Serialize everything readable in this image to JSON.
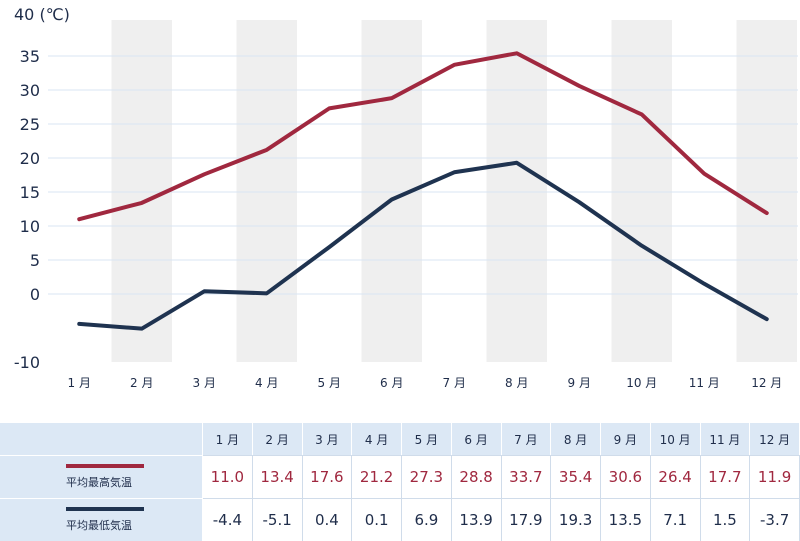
{
  "chart_data": {
    "type": "line",
    "categories": [
      "1 月",
      "2 月",
      "3 月",
      "4 月",
      "5 月",
      "6 月",
      "7 月",
      "8 月",
      "9 月",
      "10 月",
      "11 月",
      "12 月"
    ],
    "ylabel": "40 (℃)",
    "ylim": [
      -10,
      40
    ],
    "yticks": [
      "-10",
      "0",
      "5",
      "10",
      "15",
      "20",
      "25",
      "30",
      "35"
    ],
    "ytick_values": [
      -10,
      0,
      5,
      10,
      15,
      20,
      25,
      30,
      35
    ],
    "grid": true,
    "series": [
      {
        "name": "平均最高気温",
        "color": "#a0283f",
        "values": [
          11.0,
          13.4,
          17.6,
          21.2,
          27.3,
          28.8,
          33.7,
          35.4,
          30.6,
          26.4,
          17.7,
          11.9
        ],
        "labels": [
          "11.0",
          "13.4",
          "17.6",
          "21.2",
          "27.3",
          "28.8",
          "33.7",
          "35.4",
          "30.6",
          "26.4",
          "17.7",
          "11.9"
        ]
      },
      {
        "name": "平均最低気温",
        "color": "#1f3350",
        "values": [
          -4.4,
          -5.1,
          0.4,
          0.1,
          6.9,
          13.9,
          17.9,
          19.3,
          13.5,
          7.1,
          1.5,
          -3.7
        ],
        "labels": [
          "-4.4",
          "-5.1",
          "0.4",
          "0.1",
          "6.9",
          "13.9",
          "17.9",
          "19.3",
          "13.5",
          "7.1",
          "1.5",
          "-3.7"
        ]
      }
    ]
  }
}
